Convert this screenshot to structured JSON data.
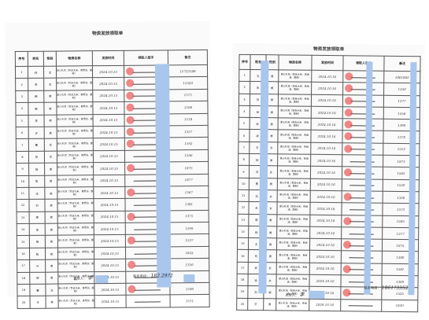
{
  "left": {
    "title": "物资发放领取单",
    "headers": [
      "序号",
      "姓名",
      "性别",
      "物资名称",
      "发放时间",
      "领取人签字",
      "备注"
    ],
    "rows": [
      {
        "no": "1",
        "name": "林",
        "gender": "女",
        "item": "爱心礼包（包含大米、食用油、面粉）",
        "date": "2024.10.15",
        "phone": "15723188"
      },
      {
        "no": "2",
        "name": "李",
        "gender": "女",
        "item": "爱心礼包（包含大米、食用油、面粉）",
        "date": "2024.10.15",
        "phone": "15320"
      },
      {
        "no": "3",
        "name": "薛",
        "gender": "男",
        "item": "爱心礼包（包含大米、食用油、面粉）",
        "date": "2024.10.15",
        "phone": "1575"
      },
      {
        "no": "4",
        "name": "韩",
        "gender": "男",
        "item": "爱心礼包（包含大米、食用油、面粉）",
        "date": "2024.10.15",
        "phone": "1508"
      },
      {
        "no": "5",
        "name": "李",
        "gender": "男",
        "item": "爱心礼包（包含大米、食用油、面粉）",
        "date": "2024.10.15",
        "phone": "1518"
      },
      {
        "no": "6",
        "name": "许",
        "gender": "男",
        "item": "爱心礼包（包含大米、食用油、面粉）",
        "date": "2024.10.15",
        "phone": "1357"
      },
      {
        "no": "7",
        "name": "曹",
        "gender": "女",
        "item": "爱心礼包（包含大米、食用油、面粉）",
        "date": "2024.10.15",
        "phone": "1592"
      },
      {
        "no": "8",
        "name": "张",
        "gender": "女",
        "item": "爱心礼包（包含大米、食用油、面粉）",
        "date": "2024.10.15",
        "phone": "1506"
      },
      {
        "no": "9",
        "name": "杨",
        "gender": "男",
        "item": "爱心礼包（包含大米、食用油、面粉）",
        "date": "2024.10.15",
        "phone": "1875"
      },
      {
        "no": "10",
        "name": "陈",
        "gender": "男",
        "item": "爱心礼包（包含大米、食用油、面粉）",
        "date": "2024.10.15",
        "phone": "1877"
      },
      {
        "no": "11",
        "name": "沈",
        "gender": "男",
        "item": "爱心礼包（包含大米、食用油、面粉）",
        "date": "2024.10.15",
        "phone": "1567"
      },
      {
        "no": "12",
        "name": "刘",
        "gender": "男",
        "item": "爱心礼包（包含大米、食用油、面粉）",
        "date": "2024.10.15",
        "phone": "1381"
      },
      {
        "no": "13",
        "name": "周",
        "gender": "男",
        "item": "爱心礼包（包含大米、食用油、面粉）",
        "date": "2024.10.15",
        "phone": "1375"
      },
      {
        "no": "14",
        "name": "李",
        "gender": "男",
        "item": "爱心礼包（包含大米、食用油、面粉）",
        "date": "2024.10.15",
        "phone": "1599"
      },
      {
        "no": "15",
        "name": "杨",
        "gender": "男",
        "item": "爱心礼包（包含大米、食用油、面粉）",
        "date": "2024.10.15",
        "phone": "1537"
      },
      {
        "no": "16",
        "name": "陈",
        "gender": "男",
        "item": "爱心礼包（包含大米、食用油、面粉）",
        "date": "2024.10.15",
        "phone": "1832"
      },
      {
        "no": "17",
        "name": "叶",
        "gender": "男",
        "item": "爱心礼包（包含大米、食用油、面粉）",
        "date": "2024.10.15",
        "phone": "1356"
      },
      {
        "no": "18",
        "name": "邵",
        "gender": "男",
        "item": "爱心礼包（包含大米、食用油、面粉）",
        "date": "2024.10.15",
        "phone": "1572"
      },
      {
        "no": "19",
        "name": "曹",
        "gender": "女",
        "item": "爱心礼包（包含大米、食用油、面粉）",
        "date": "2024.10.15",
        "phone": "1590"
      },
      {
        "no": "20",
        "name": "辛",
        "gender": "男",
        "item": "爱心礼包（包含大米、食用油、面粉）",
        "date": "2024.10.15",
        "phone": "1511"
      }
    ],
    "footer_issuer_label": "发放人：",
    "footer_issuer_sig": "李",
    "footer_phone_label": "联系电话：",
    "footer_phone_value": "182.29?2"
  },
  "right": {
    "title": "物资发放领取单",
    "headers": [
      "序号",
      "姓名",
      "性别",
      "物资名称",
      "发放时间",
      "领取人签字",
      "备注"
    ],
    "rows": [
      {
        "no": "1",
        "name": "孔",
        "gender": "男",
        "item": "爱心礼包（包含大米、食用油、面粉）",
        "date": "2024.10.16",
        "phone": "1861862"
      },
      {
        "no": "2",
        "name": "朱",
        "gender": "男",
        "item": "爱心礼包（包含大米、食用油、面粉）",
        "date": "2024.10.16",
        "phone": "1350"
      },
      {
        "no": "3",
        "name": "刘",
        "gender": "男",
        "item": "爱心礼包（包含大米、食用油、面粉）",
        "date": "2024.10.16",
        "phone": "1377"
      },
      {
        "no": "4",
        "name": "林",
        "gender": "男",
        "item": "爱心礼包（包含大米、食用油、面粉）",
        "date": "2024.10.16",
        "phone": "1556"
      },
      {
        "no": "5",
        "name": "武",
        "gender": "男",
        "item": "爱心礼包（包含大米、食用油、面粉）",
        "date": "2024.10.16",
        "phone": "1390"
      },
      {
        "no": "6",
        "name": "凌",
        "gender": "男",
        "item": "爱心礼包（包含大米、食用油、面粉）",
        "date": "2024.10.16",
        "phone": "1378"
      },
      {
        "no": "7",
        "name": "王",
        "gender": "女",
        "item": "爱心礼包（包含大米、食用油、面粉）",
        "date": "2024.10.16",
        "phone": "1512"
      },
      {
        "no": "8",
        "name": "杨",
        "gender": "男",
        "item": "爱心礼包（包含大米、食用油、面粉）",
        "date": "2024.10.16",
        "phone": "1873"
      },
      {
        "no": "9",
        "name": "冯",
        "gender": "女",
        "item": "爱心礼包（包含大米、食用油、面粉）",
        "date": "2024.10.16",
        "phone": "1565"
      },
      {
        "no": "10",
        "name": "曹",
        "gender": "男",
        "item": "爱心礼包（包含大米、食用油、面粉）",
        "date": "2024.10.16",
        "phone": "1520"
      },
      {
        "no": "11",
        "name": "刘",
        "gender": "女",
        "item": "爱心礼包（包含大米、食用油、面粉）",
        "date": "2024.10.16",
        "phone": "1336"
      },
      {
        "no": "12",
        "name": "朱",
        "gender": "女",
        "item": "爱心礼包（包含大米、食用油、面粉）",
        "date": "2024.10.16",
        "phone": "1573"
      },
      {
        "no": "13",
        "name": "郭",
        "gender": "男",
        "item": "爱心礼包（包含大米、食用油、面粉）",
        "date": "2024.10.16",
        "phone": "1585"
      },
      {
        "no": "14",
        "name": "杨",
        "gender": "男",
        "item": "爱心礼包（包含大米、食用油、面粉）",
        "date": "2024.10.16",
        "phone": "1377"
      },
      {
        "no": "15",
        "name": "王",
        "gender": "男",
        "item": "爱心礼包（包含大米、食用油、面粉）",
        "date": "2024.10.16",
        "phone": "1875"
      },
      {
        "no": "16",
        "name": "刘",
        "gender": "男",
        "item": "爱心礼包（包含大米、食用油、面粉）",
        "date": "2024.10.16",
        "phone": "1380"
      },
      {
        "no": "17",
        "name": "武",
        "gender": "女",
        "item": "爱心礼包（包含大米、食用油、面粉）",
        "date": "2024.10.16",
        "phone": "1581"
      },
      {
        "no": "18",
        "name": "徐",
        "gender": "女",
        "item": "爱心礼包（包含大米、食用油、面粉）",
        "date": "2024.10.16",
        "phone": "1300"
      },
      {
        "no": "19",
        "name": "刘",
        "gender": "男",
        "item": "爱心礼包（包含大米、食用油、面粉）",
        "date": "2024.10.16",
        "phone": "1525"
      },
      {
        "no": "20",
        "name": "卫",
        "gender": "男",
        "item": "爱心礼包（包含大米、食用油、面粉）",
        "date": "2024.10.16",
        "phone": "1830"
      }
    ],
    "footer_issuer_label": "发放人：",
    "footer_issuer_sig": "李",
    "footer_phone_label": "联系电话：",
    "footer_phone_value": "1861?3352"
  },
  "colors": {
    "redaction": "#a9c6ec",
    "stamp": "#e62828"
  }
}
